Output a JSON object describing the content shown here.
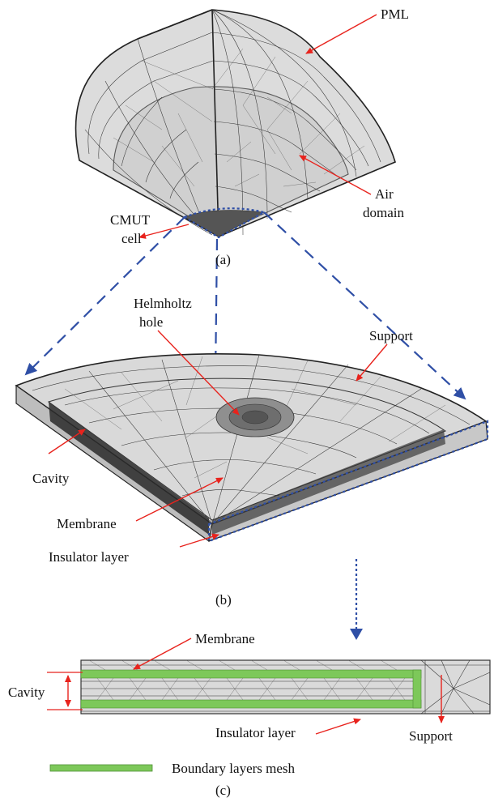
{
  "panel_a": {
    "caption": "(a)",
    "labels": {
      "pml": "PML",
      "air_line1": "Air",
      "air_line2": "domain",
      "cmut_line1": "CMUT",
      "cmut_line2": "cell"
    }
  },
  "panel_b": {
    "caption": "(b)",
    "labels": {
      "helmholtz_line1": "Helmholtz",
      "helmholtz_line2": "hole",
      "support": "Support",
      "cavity": "Cavity",
      "membrane": "Membrane",
      "insulator": "Insulator layer"
    }
  },
  "panel_c": {
    "caption": "(c)",
    "labels": {
      "membrane": "Membrane",
      "cavity": "Cavity",
      "insulator": "Insulator layer",
      "support": "Support"
    }
  },
  "legend": {
    "boundary_label": "Boundary layers mesh"
  },
  "colors": {
    "arrow": "#e8231d",
    "guide": "#2f4fa6",
    "boundary": "#7dc85a",
    "mesh_fill": "#d9d9d9"
  }
}
